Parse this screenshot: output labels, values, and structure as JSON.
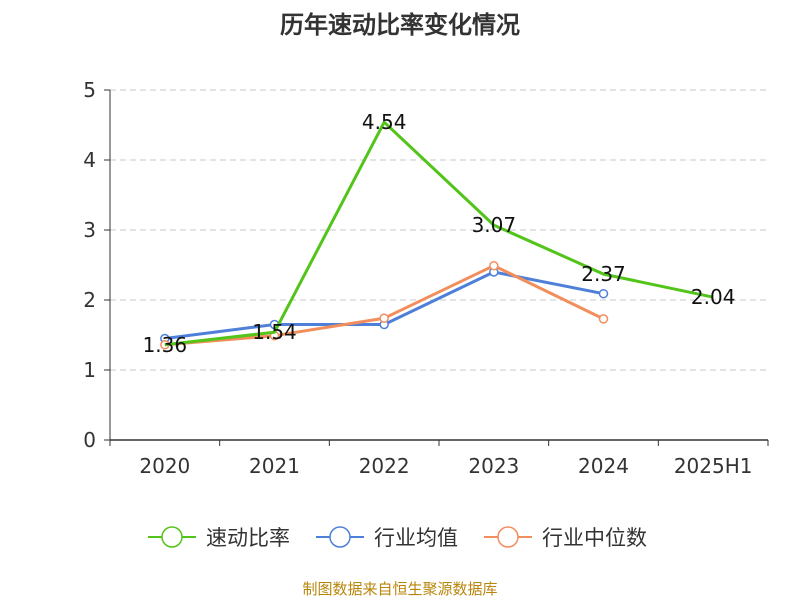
{
  "title": "历年速动比率变化情况",
  "footer": "制图数据来自恒生聚源数据库",
  "chart_data": {
    "type": "line",
    "categories": [
      "2020",
      "2021",
      "2022",
      "2023",
      "2024",
      "2025H1"
    ],
    "ylim": [
      0,
      5
    ],
    "yticks": [
      "0",
      "1",
      "2",
      "3",
      "4",
      "5"
    ],
    "grid": true,
    "legend_position": "bottom",
    "series": [
      {
        "name": "速动比率",
        "color": "#52c41a",
        "values": [
          1.36,
          1.54,
          4.54,
          3.07,
          2.37,
          2.04
        ],
        "labels": [
          "1.36",
          "1.54",
          "4.54",
          "3.07",
          "2.37",
          "2.04"
        ],
        "show_markers": false
      },
      {
        "name": "行业均值",
        "color": "#4f80d9",
        "values": [
          1.45,
          1.65,
          1.65,
          2.4,
          2.09,
          null
        ],
        "labels": [],
        "show_markers": true
      },
      {
        "name": "行业中位数",
        "color": "#f28e5c",
        "values": [
          1.36,
          1.49,
          1.74,
          2.49,
          1.73,
          null
        ],
        "labels": [],
        "show_markers": true
      }
    ]
  }
}
